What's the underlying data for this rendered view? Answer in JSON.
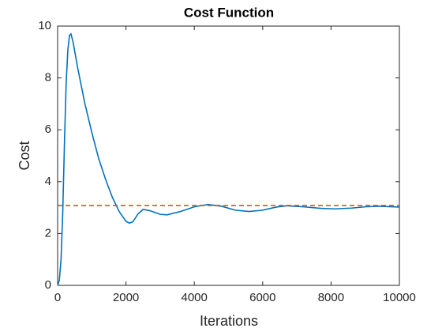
{
  "chart_data": {
    "type": "line",
    "title": "Cost Function",
    "x_label": "Iterations",
    "y_label": "Cost",
    "xlim": [
      0,
      10000
    ],
    "xticks": [
      0,
      2000,
      4000,
      6000,
      8000,
      10000
    ],
    "ylim": [
      0,
      10
    ],
    "yticks": [
      0,
      2,
      4,
      6,
      8,
      10
    ],
    "grid": false,
    "series": [
      {
        "color": "#0072bd",
        "line_style": "solid",
        "x": [
          0,
          50,
          100,
          150,
          200,
          250,
          300,
          350,
          390,
          450,
          600,
          800,
          1000,
          1200,
          1400,
          1600,
          1800,
          2000,
          2100,
          2200,
          2350,
          2500,
          2700,
          3000,
          3200,
          3600,
          4000,
          4400,
          4800,
          5200,
          5600,
          6000,
          6400,
          6700,
          7200,
          7700,
          8100,
          8600,
          9000,
          9400,
          10000
        ],
        "values": [
          0,
          0.2,
          1.0,
          2.8,
          5.5,
          7.8,
          9.1,
          9.65,
          9.7,
          9.4,
          8.3,
          7.0,
          5.9,
          4.9,
          4.1,
          3.4,
          2.85,
          2.47,
          2.4,
          2.45,
          2.75,
          2.93,
          2.88,
          2.74,
          2.72,
          2.85,
          3.03,
          3.12,
          3.05,
          2.9,
          2.85,
          2.9,
          3.02,
          3.07,
          3.03,
          2.97,
          2.95,
          2.98,
          3.03,
          3.05,
          3.02
        ]
      },
      {
        "color": "#d95319",
        "line_style": "dashed",
        "x": [
          0,
          10000
        ],
        "values": [
          3.08,
          3.08
        ]
      }
    ]
  }
}
